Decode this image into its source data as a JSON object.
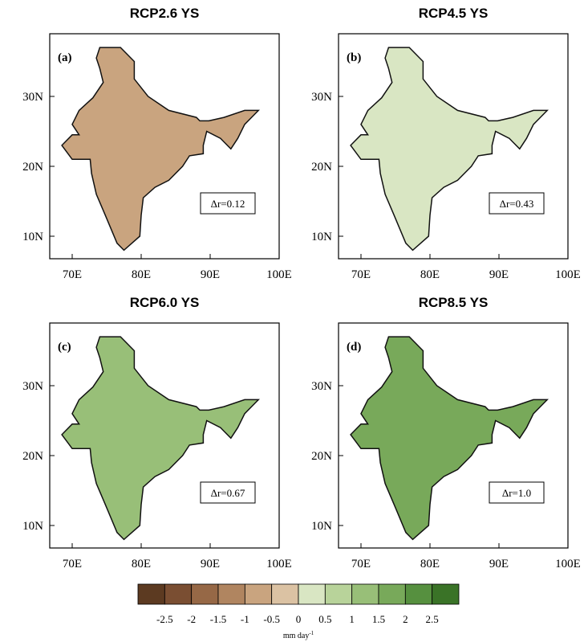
{
  "panels": [
    {
      "title": "RCP2.6 YS",
      "label": "(a)",
      "annotation": "Δr=0.12"
    },
    {
      "title": "RCP4.5 YS",
      "label": "(b)",
      "annotation": "Δr=0.43"
    },
    {
      "title": "RCP6.0 YS",
      "label": "(c)",
      "annotation": "Δr=0.67"
    },
    {
      "title": "RCP8.5 YS",
      "label": "(d)",
      "annotation": "Δr=1.0"
    }
  ],
  "lon_labels": [
    "70E",
    "80E",
    "90E",
    "100E"
  ],
  "lat_labels": [
    "30N",
    "20N",
    "10N"
  ],
  "colorbar": {
    "colors": [
      "#5c3a21",
      "#7a4e32",
      "#966846",
      "#b08560",
      "#c9a47f",
      "#dbc2a3",
      "#d9e6c3",
      "#b8d39a",
      "#98bf78",
      "#78a95a",
      "#56903f",
      "#3a7327"
    ],
    "labels": [
      "-2.5",
      "-2",
      "-1.5",
      "-1",
      "-0.5",
      "0",
      "0.5",
      "1",
      "1.5",
      "2",
      "2.5"
    ],
    "units": "mm day",
    "units_sup": "-1"
  }
}
